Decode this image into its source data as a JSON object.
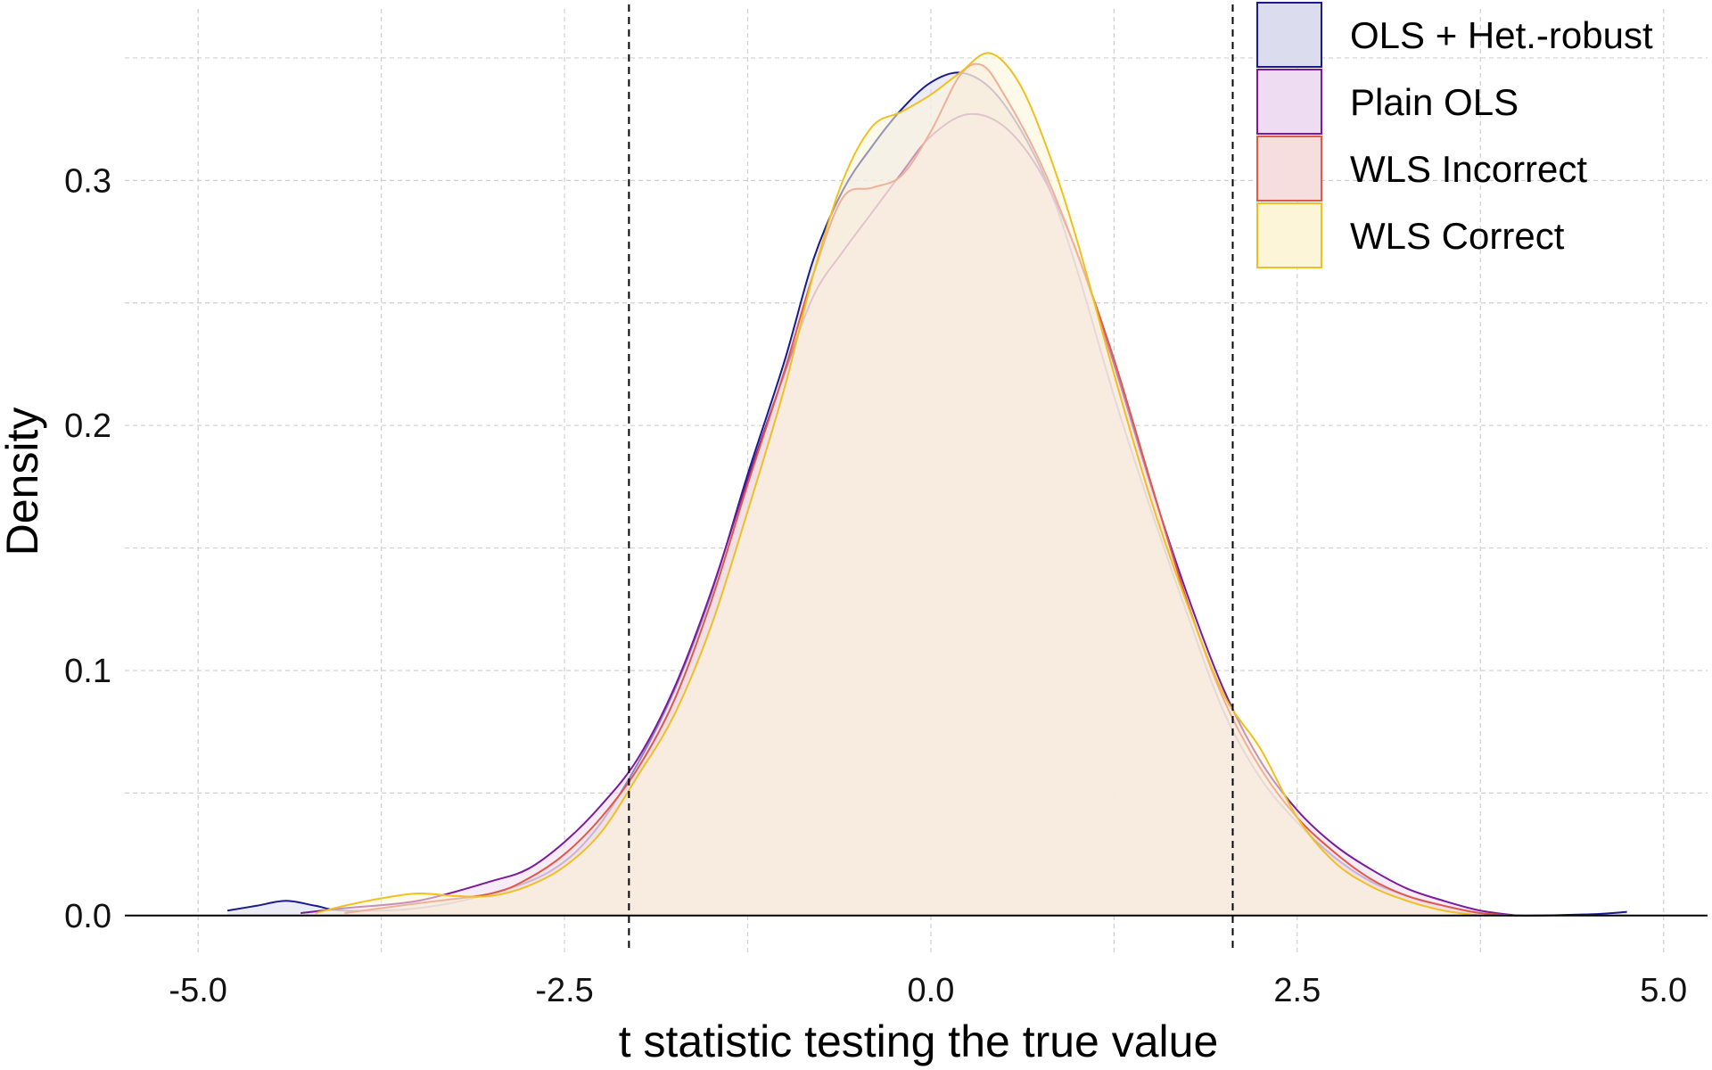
{
  "chart_data": {
    "type": "area",
    "title": "",
    "xlabel": "t statistic testing the true value",
    "ylabel": "Density",
    "xlim": [
      -5.5,
      5.3
    ],
    "ylim": [
      -0.015,
      0.37
    ],
    "x_ticks": [
      -5.0,
      -2.5,
      0.0,
      2.5,
      5.0
    ],
    "x_tick_labels": [
      "-5.0",
      "-2.5",
      "0.0",
      "2.5",
      "5.0"
    ],
    "y_ticks": [
      0.0,
      0.1,
      0.2,
      0.3
    ],
    "y_tick_labels": [
      "0.0",
      "0.1",
      "0.2",
      "0.3"
    ],
    "grid": true,
    "legend_position": "top-right",
    "reference_lines_x": [
      -2.06,
      2.06
    ],
    "series": [
      {
        "name": "OLS + Het.-robust",
        "stroke": "#1a1a8c",
        "fill": "#dcdcef",
        "points": [
          [
            -4.8,
            0.002
          ],
          [
            -4.6,
            0.004
          ],
          [
            -4.4,
            0.006
          ],
          [
            -4.2,
            0.004
          ],
          [
            -4.0,
            0.002
          ],
          [
            -3.5,
            0.003
          ],
          [
            -3.0,
            0.009
          ],
          [
            -2.6,
            0.018
          ],
          [
            -2.3,
            0.034
          ],
          [
            -2.0,
            0.062
          ],
          [
            -1.75,
            0.092
          ],
          [
            -1.5,
            0.131
          ],
          [
            -1.25,
            0.18
          ],
          [
            -1.0,
            0.226
          ],
          [
            -0.8,
            0.268
          ],
          [
            -0.6,
            0.296
          ],
          [
            -0.4,
            0.314
          ],
          [
            -0.2,
            0.329
          ],
          [
            0.0,
            0.34
          ],
          [
            0.2,
            0.344
          ],
          [
            0.4,
            0.338
          ],
          [
            0.6,
            0.322
          ],
          [
            0.8,
            0.298
          ],
          [
            1.0,
            0.263
          ],
          [
            1.25,
            0.212
          ],
          [
            1.5,
            0.166
          ],
          [
            1.75,
            0.123
          ],
          [
            2.0,
            0.083
          ],
          [
            2.25,
            0.056
          ],
          [
            2.5,
            0.038
          ],
          [
            2.75,
            0.024
          ],
          [
            3.0,
            0.014
          ],
          [
            3.25,
            0.008
          ],
          [
            3.5,
            0.004
          ],
          [
            3.75,
            0.001
          ],
          [
            4.0,
            0.0
          ],
          [
            4.5,
            0.0005
          ],
          [
            4.75,
            0.0015
          ]
        ]
      },
      {
        "name": "Plain OLS",
        "stroke": "#7a1a9a",
        "fill": "#eddcf2",
        "points": [
          [
            -4.3,
            0.001
          ],
          [
            -4.0,
            0.003
          ],
          [
            -3.5,
            0.006
          ],
          [
            -3.0,
            0.014
          ],
          [
            -2.75,
            0.019
          ],
          [
            -2.5,
            0.03
          ],
          [
            -2.25,
            0.045
          ],
          [
            -2.0,
            0.064
          ],
          [
            -1.75,
            0.093
          ],
          [
            -1.5,
            0.132
          ],
          [
            -1.25,
            0.178
          ],
          [
            -1.0,
            0.221
          ],
          [
            -0.8,
            0.253
          ],
          [
            -0.6,
            0.271
          ],
          [
            -0.4,
            0.287
          ],
          [
            -0.2,
            0.303
          ],
          [
            0.0,
            0.318
          ],
          [
            0.25,
            0.327
          ],
          [
            0.5,
            0.322
          ],
          [
            0.75,
            0.303
          ],
          [
            1.0,
            0.27
          ],
          [
            1.25,
            0.225
          ],
          [
            1.5,
            0.176
          ],
          [
            1.75,
            0.131
          ],
          [
            2.0,
            0.092
          ],
          [
            2.25,
            0.063
          ],
          [
            2.5,
            0.043
          ],
          [
            2.75,
            0.029
          ],
          [
            3.0,
            0.019
          ],
          [
            3.25,
            0.011
          ],
          [
            3.5,
            0.006
          ],
          [
            3.75,
            0.002
          ],
          [
            4.0,
            0.0
          ]
        ]
      },
      {
        "name": "WLS Incorrect",
        "stroke": "#e05a4a",
        "fill": "#f6dede",
        "points": [
          [
            -4.0,
            0.001
          ],
          [
            -3.5,
            0.005
          ],
          [
            -3.0,
            0.009
          ],
          [
            -2.75,
            0.015
          ],
          [
            -2.5,
            0.025
          ],
          [
            -2.25,
            0.04
          ],
          [
            -2.0,
            0.06
          ],
          [
            -1.75,
            0.088
          ],
          [
            -1.5,
            0.128
          ],
          [
            -1.25,
            0.176
          ],
          [
            -1.0,
            0.222
          ],
          [
            -0.8,
            0.262
          ],
          [
            -0.6,
            0.293
          ],
          [
            -0.4,
            0.297
          ],
          [
            -0.2,
            0.302
          ],
          [
            0.0,
            0.32
          ],
          [
            0.2,
            0.343
          ],
          [
            0.35,
            0.347
          ],
          [
            0.5,
            0.335
          ],
          [
            0.75,
            0.307
          ],
          [
            1.0,
            0.27
          ],
          [
            1.25,
            0.227
          ],
          [
            1.5,
            0.177
          ],
          [
            1.75,
            0.128
          ],
          [
            2.0,
            0.088
          ],
          [
            2.25,
            0.06
          ],
          [
            2.5,
            0.04
          ],
          [
            2.75,
            0.026
          ],
          [
            3.0,
            0.015
          ],
          [
            3.25,
            0.008
          ],
          [
            3.5,
            0.004
          ],
          [
            3.75,
            0.001
          ],
          [
            4.0,
            0.0
          ]
        ]
      },
      {
        "name": "WLS Correct",
        "stroke": "#f0c020",
        "fill": "#fdf5d8",
        "points": [
          [
            -4.2,
            0.001
          ],
          [
            -4.0,
            0.004
          ],
          [
            -3.75,
            0.007
          ],
          [
            -3.5,
            0.009
          ],
          [
            -3.25,
            0.008
          ],
          [
            -3.0,
            0.008
          ],
          [
            -2.75,
            0.012
          ],
          [
            -2.5,
            0.02
          ],
          [
            -2.25,
            0.034
          ],
          [
            -2.0,
            0.057
          ],
          [
            -1.75,
            0.082
          ],
          [
            -1.5,
            0.118
          ],
          [
            -1.25,
            0.165
          ],
          [
            -1.0,
            0.215
          ],
          [
            -0.8,
            0.262
          ],
          [
            -0.6,
            0.3
          ],
          [
            -0.4,
            0.322
          ],
          [
            -0.2,
            0.328
          ],
          [
            0.0,
            0.335
          ],
          [
            0.2,
            0.344
          ],
          [
            0.4,
            0.352
          ],
          [
            0.6,
            0.34
          ],
          [
            0.8,
            0.312
          ],
          [
            1.0,
            0.275
          ],
          [
            1.25,
            0.221
          ],
          [
            1.5,
            0.17
          ],
          [
            1.75,
            0.127
          ],
          [
            2.0,
            0.09
          ],
          [
            2.25,
            0.068
          ],
          [
            2.5,
            0.04
          ],
          [
            2.75,
            0.022
          ],
          [
            3.0,
            0.012
          ],
          [
            3.25,
            0.006
          ],
          [
            3.5,
            0.002
          ],
          [
            3.75,
            0.0
          ]
        ]
      }
    ]
  }
}
